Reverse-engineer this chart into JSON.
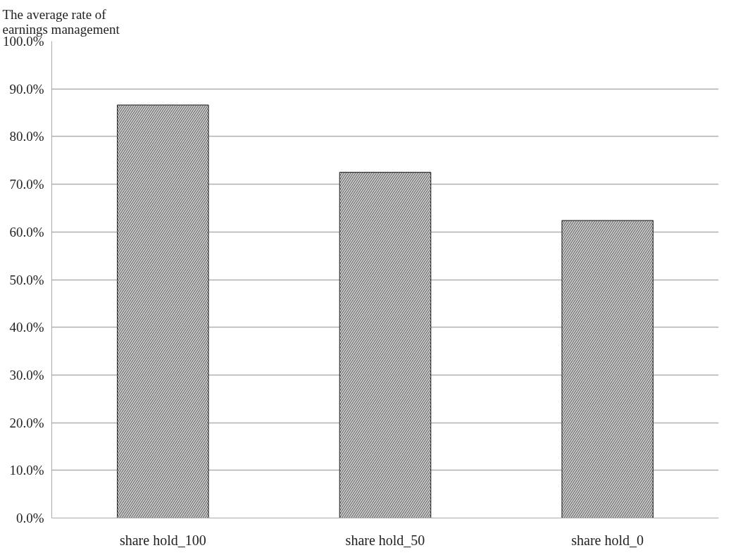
{
  "chart_data": {
    "type": "bar",
    "ylabel": "The average rate of earnings management",
    "categories": [
      "share hold_100",
      "share hold_50",
      "share hold_0"
    ],
    "values": [
      86.6,
      72.5,
      62.4
    ],
    "color": "#ffffff",
    "ylim": [
      0,
      100
    ],
    "yticks": [
      {
        "value": 0,
        "label": "0.0%"
      },
      {
        "value": 10,
        "label": "10.0%"
      },
      {
        "value": 20,
        "label": "20.0%"
      },
      {
        "value": 30,
        "label": "30.0%"
      },
      {
        "value": 40,
        "label": "40.0%"
      },
      {
        "value": 50,
        "label": "50.0%"
      },
      {
        "value": 60,
        "label": "60.0%"
      },
      {
        "value": 70,
        "label": "70.0%"
      },
      {
        "value": 80,
        "label": "80.0%"
      },
      {
        "value": 90,
        "label": "90.0%"
      },
      {
        "value": 100,
        "label": "100.0%"
      }
    ],
    "grid": "y",
    "legend": false
  }
}
